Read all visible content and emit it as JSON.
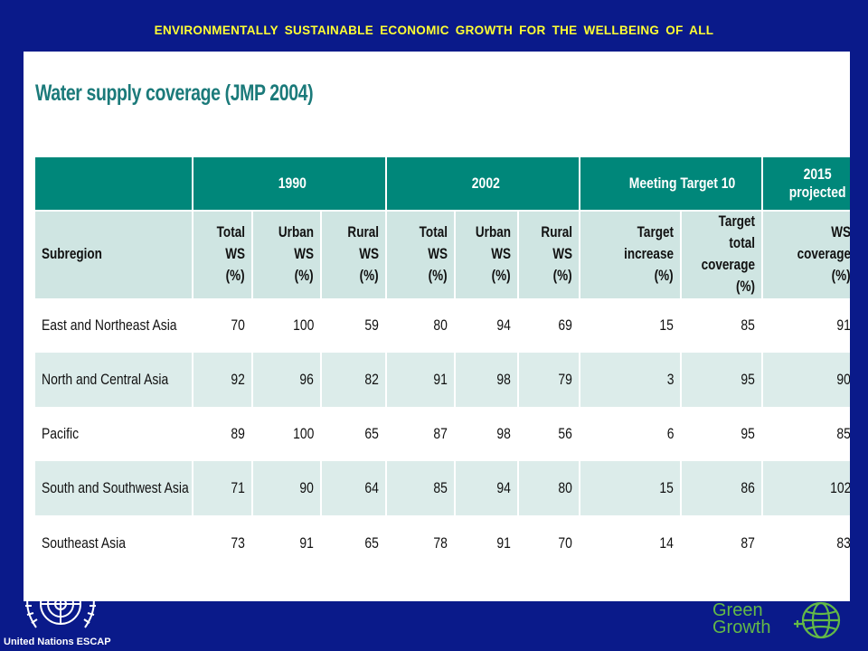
{
  "banner": {
    "title": "ENVIRONMENTALLY  SUSTAINABLE ECONOMIC GROWTH FOR THE WELLBEING OF ALL"
  },
  "slide": {
    "title": "Water supply coverage (JMP 2004)"
  },
  "table": {
    "groups": [
      "1990",
      "2002",
      "Meeting Target 10",
      "2015 projected"
    ],
    "headers": [
      {
        "line1": "Subregion",
        "line2": ""
      },
      {
        "line1": "Total WS",
        "line2": "(%)"
      },
      {
        "line1": "Urban WS",
        "line2": "(%)"
      },
      {
        "line1": "Rural WS",
        "line2": "(%)"
      },
      {
        "line1": "Total WS",
        "line2": "(%)"
      },
      {
        "line1": "Urban WS",
        "line2": "(%)"
      },
      {
        "line1": "Rural WS",
        "line2": "(%)"
      },
      {
        "line1": "Target increase",
        "line2": "(%)"
      },
      {
        "line1": "Target total",
        "line2": "coverage (%)"
      },
      {
        "line1": "WS coverage",
        "line2": "(%)"
      }
    ],
    "rows": [
      [
        "East and Northeast Asia",
        "70",
        "100",
        "59",
        "80",
        "94",
        "69",
        "15",
        "85",
        "91"
      ],
      [
        "North and Central Asia",
        "92",
        "96",
        "82",
        "91",
        "98",
        "79",
        "3",
        "95",
        "90"
      ],
      [
        "Pacific",
        "89",
        "100",
        "65",
        "87",
        "98",
        "56",
        "6",
        "95",
        "85"
      ],
      [
        "South and Southwest Asia",
        "71",
        "90",
        "64",
        "85",
        "94",
        "80",
        "15",
        "86",
        "102"
      ],
      [
        "Southeast Asia",
        "73",
        "91",
        "65",
        "78",
        "91",
        "70",
        "14",
        "87",
        "83"
      ]
    ]
  },
  "footer": {
    "un_label": "United Nations ESCAP",
    "gg_line1": "Green",
    "gg_line2": "Growth"
  },
  "colors": {
    "background": "#0a1a8a",
    "banner_text": "#ffff33",
    "header_teal": "#00877a",
    "subheader": "#cfe5e2",
    "row_shade": "#dcecea",
    "title_teal": "#1b7a7a",
    "green_growth": "#63b947"
  }
}
